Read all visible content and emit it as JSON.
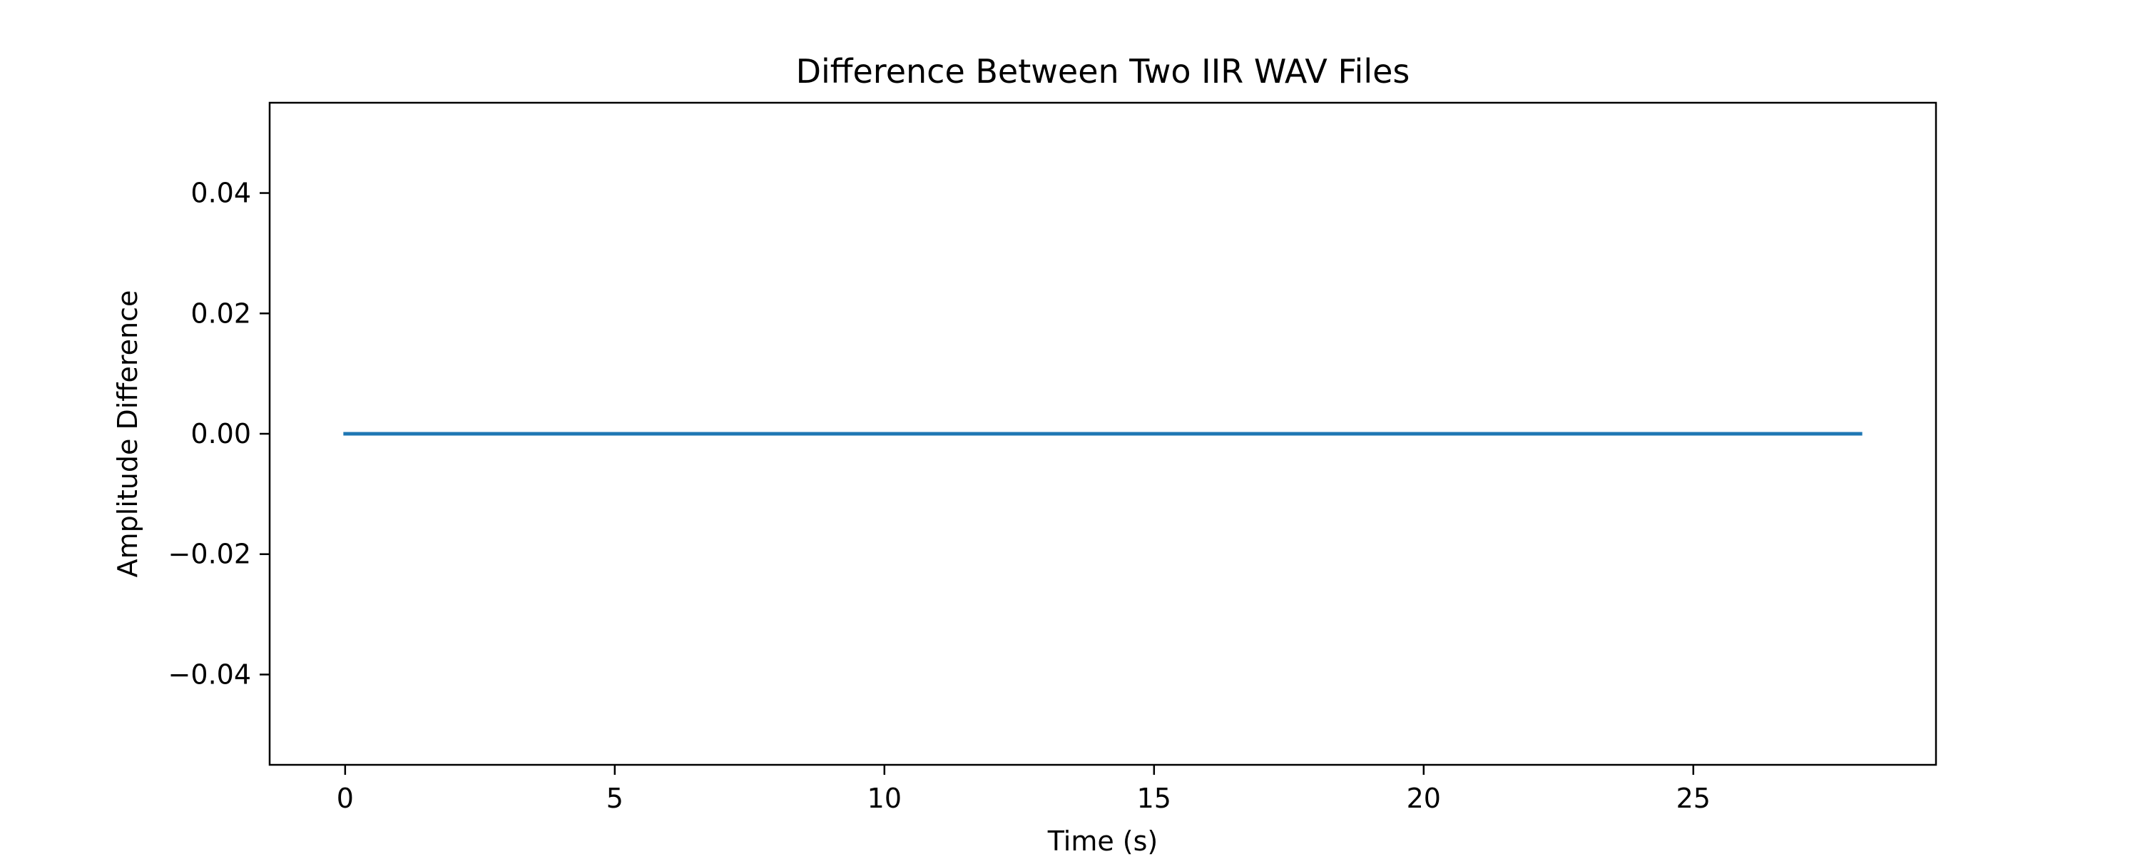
{
  "chart_data": {
    "type": "line",
    "title": "Difference Between Two IIR WAV Files",
    "xlabel": "Time (s)",
    "ylabel": "Amplitude Difference",
    "xlim": [
      -1.4,
      29.5
    ],
    "ylim": [
      -0.055,
      0.055
    ],
    "x_ticks": [
      0,
      5,
      10,
      15,
      20,
      25
    ],
    "x_tick_labels": [
      "0",
      "5",
      "10",
      "15",
      "20",
      "25"
    ],
    "y_ticks": [
      0.04,
      0.02,
      0.0,
      -0.02,
      -0.04
    ],
    "y_tick_labels": [
      "0.04",
      "0.02",
      "0.00",
      "−0.02",
      "−0.04"
    ],
    "grid": false,
    "series": [
      {
        "color": "#1f77b4",
        "x": [
          0,
          28.1
        ],
        "y": [
          0.0,
          0.0
        ]
      }
    ]
  }
}
